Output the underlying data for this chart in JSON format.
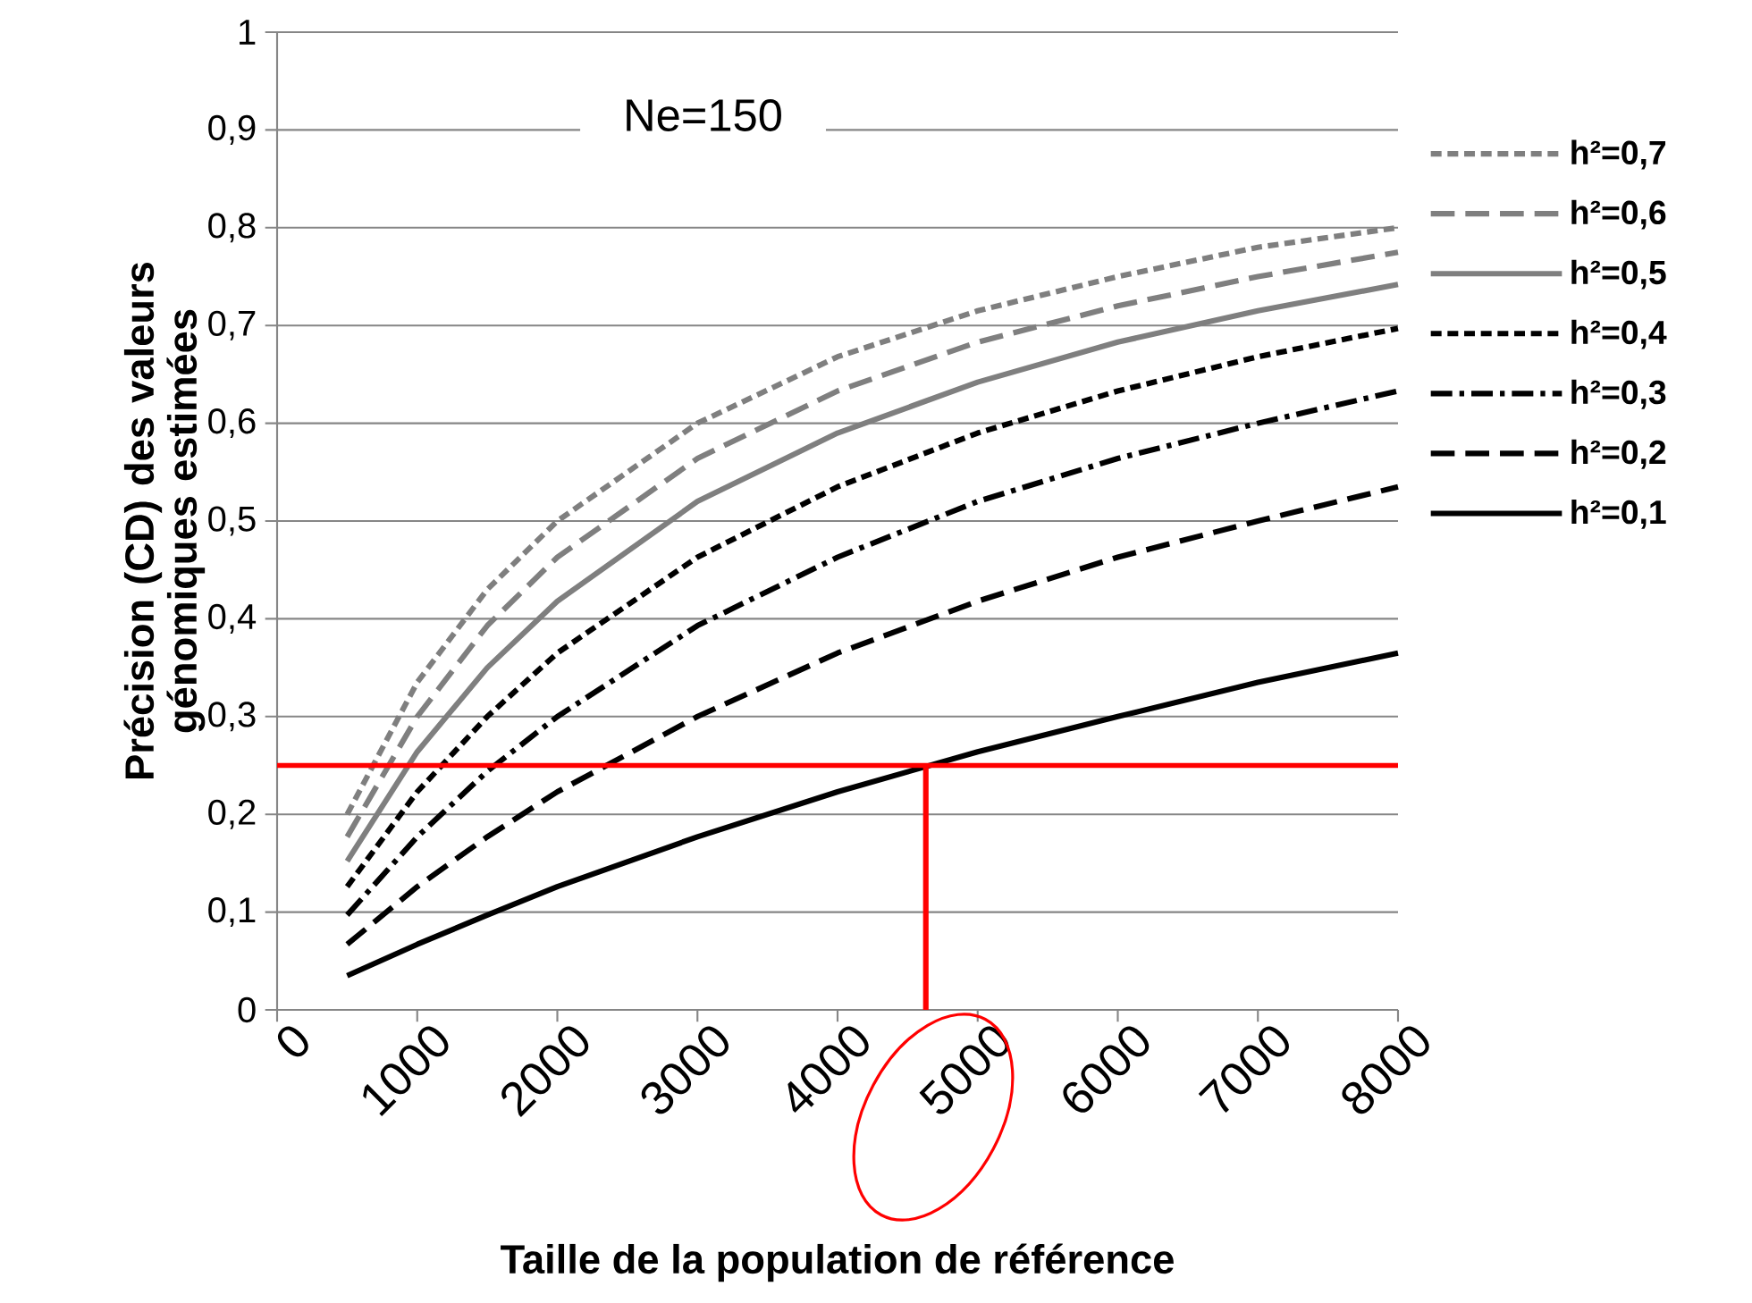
{
  "chart_data": {
    "type": "line",
    "title": "Ne=150",
    "xlabel": "Taille de la population de référence",
    "ylabel": "Précision (CD) des valeurs génomiques estimées",
    "x": [
      500,
      1000,
      1500,
      2000,
      3000,
      4000,
      5000,
      6000,
      7000,
      8000
    ],
    "xlim": [
      0,
      8000
    ],
    "xticks": [
      0,
      1000,
      2000,
      3000,
      4000,
      5000,
      6000,
      7000,
      8000
    ],
    "ylim": [
      0,
      1
    ],
    "yticks": [
      0,
      {
        "value": 0.1,
        "label": "0,1"
      },
      {
        "value": 0.2,
        "label": "0,2"
      },
      {
        "value": 0.3,
        "label": "0,3"
      },
      {
        "value": 0.4,
        "label": "0,4"
      },
      {
        "value": 0.5,
        "label": "0,5"
      },
      {
        "value": 0.6,
        "label": "0,6"
      },
      {
        "value": 0.7,
        "label": "0,7"
      },
      {
        "value": 0.8,
        "label": "0,8"
      },
      {
        "value": 0.9,
        "label": "0,9"
      },
      1
    ],
    "grid": "y",
    "legend": "right",
    "series": [
      {
        "name": "h²=0,7",
        "color": "#7f7f7f",
        "line_style": "dotted",
        "values": [
          0.2,
          0.335,
          0.43,
          0.5,
          0.6,
          0.668,
          0.715,
          0.75,
          0.78,
          0.8
        ]
      },
      {
        "name": "h²=0,6",
        "color": "#7f7f7f",
        "line_style": "dashed",
        "values": [
          0.177,
          0.3,
          0.393,
          0.463,
          0.564,
          0.633,
          0.683,
          0.72,
          0.75,
          0.775
        ]
      },
      {
        "name": "h²=0,5",
        "color": "#7f7f7f",
        "line_style": "solid",
        "values": [
          0.152,
          0.264,
          0.35,
          0.418,
          0.52,
          0.59,
          0.642,
          0.683,
          0.715,
          0.742
        ]
      },
      {
        "name": "h²=0,4",
        "color": "#000000",
        "line_style": "dotted",
        "values": [
          0.126,
          0.223,
          0.3,
          0.365,
          0.463,
          0.535,
          0.59,
          0.633,
          0.668,
          0.697
        ]
      },
      {
        "name": "h²=0,3",
        "color": "#000000",
        "line_style": "dashdot",
        "values": [
          0.097,
          0.177,
          0.244,
          0.3,
          0.393,
          0.463,
          0.52,
          0.564,
          0.6,
          0.633
        ]
      },
      {
        "name": "h²=0,2",
        "color": "#000000",
        "line_style": "dashed",
        "values": [
          0.067,
          0.126,
          0.177,
          0.223,
          0.3,
          0.365,
          0.418,
          0.463,
          0.5,
          0.535
        ]
      },
      {
        "name": "h²=0,1",
        "color": "#000000",
        "line_style": "solid",
        "values": [
          0.035,
          0.067,
          0.097,
          0.126,
          0.177,
          0.223,
          0.264,
          0.3,
          0.335,
          0.365
        ]
      },
      {
        "type": "line",
        "color": "#ff0000",
        "line_style": "solid",
        "x": [
          4630,
          4630
        ],
        "values": [
          0,
          0.25
        ]
      }
    ],
    "ref_lines": [
      {
        "axis": "y",
        "value": 0.25,
        "color": "#ff0000",
        "line_style": "solid"
      }
    ]
  }
}
